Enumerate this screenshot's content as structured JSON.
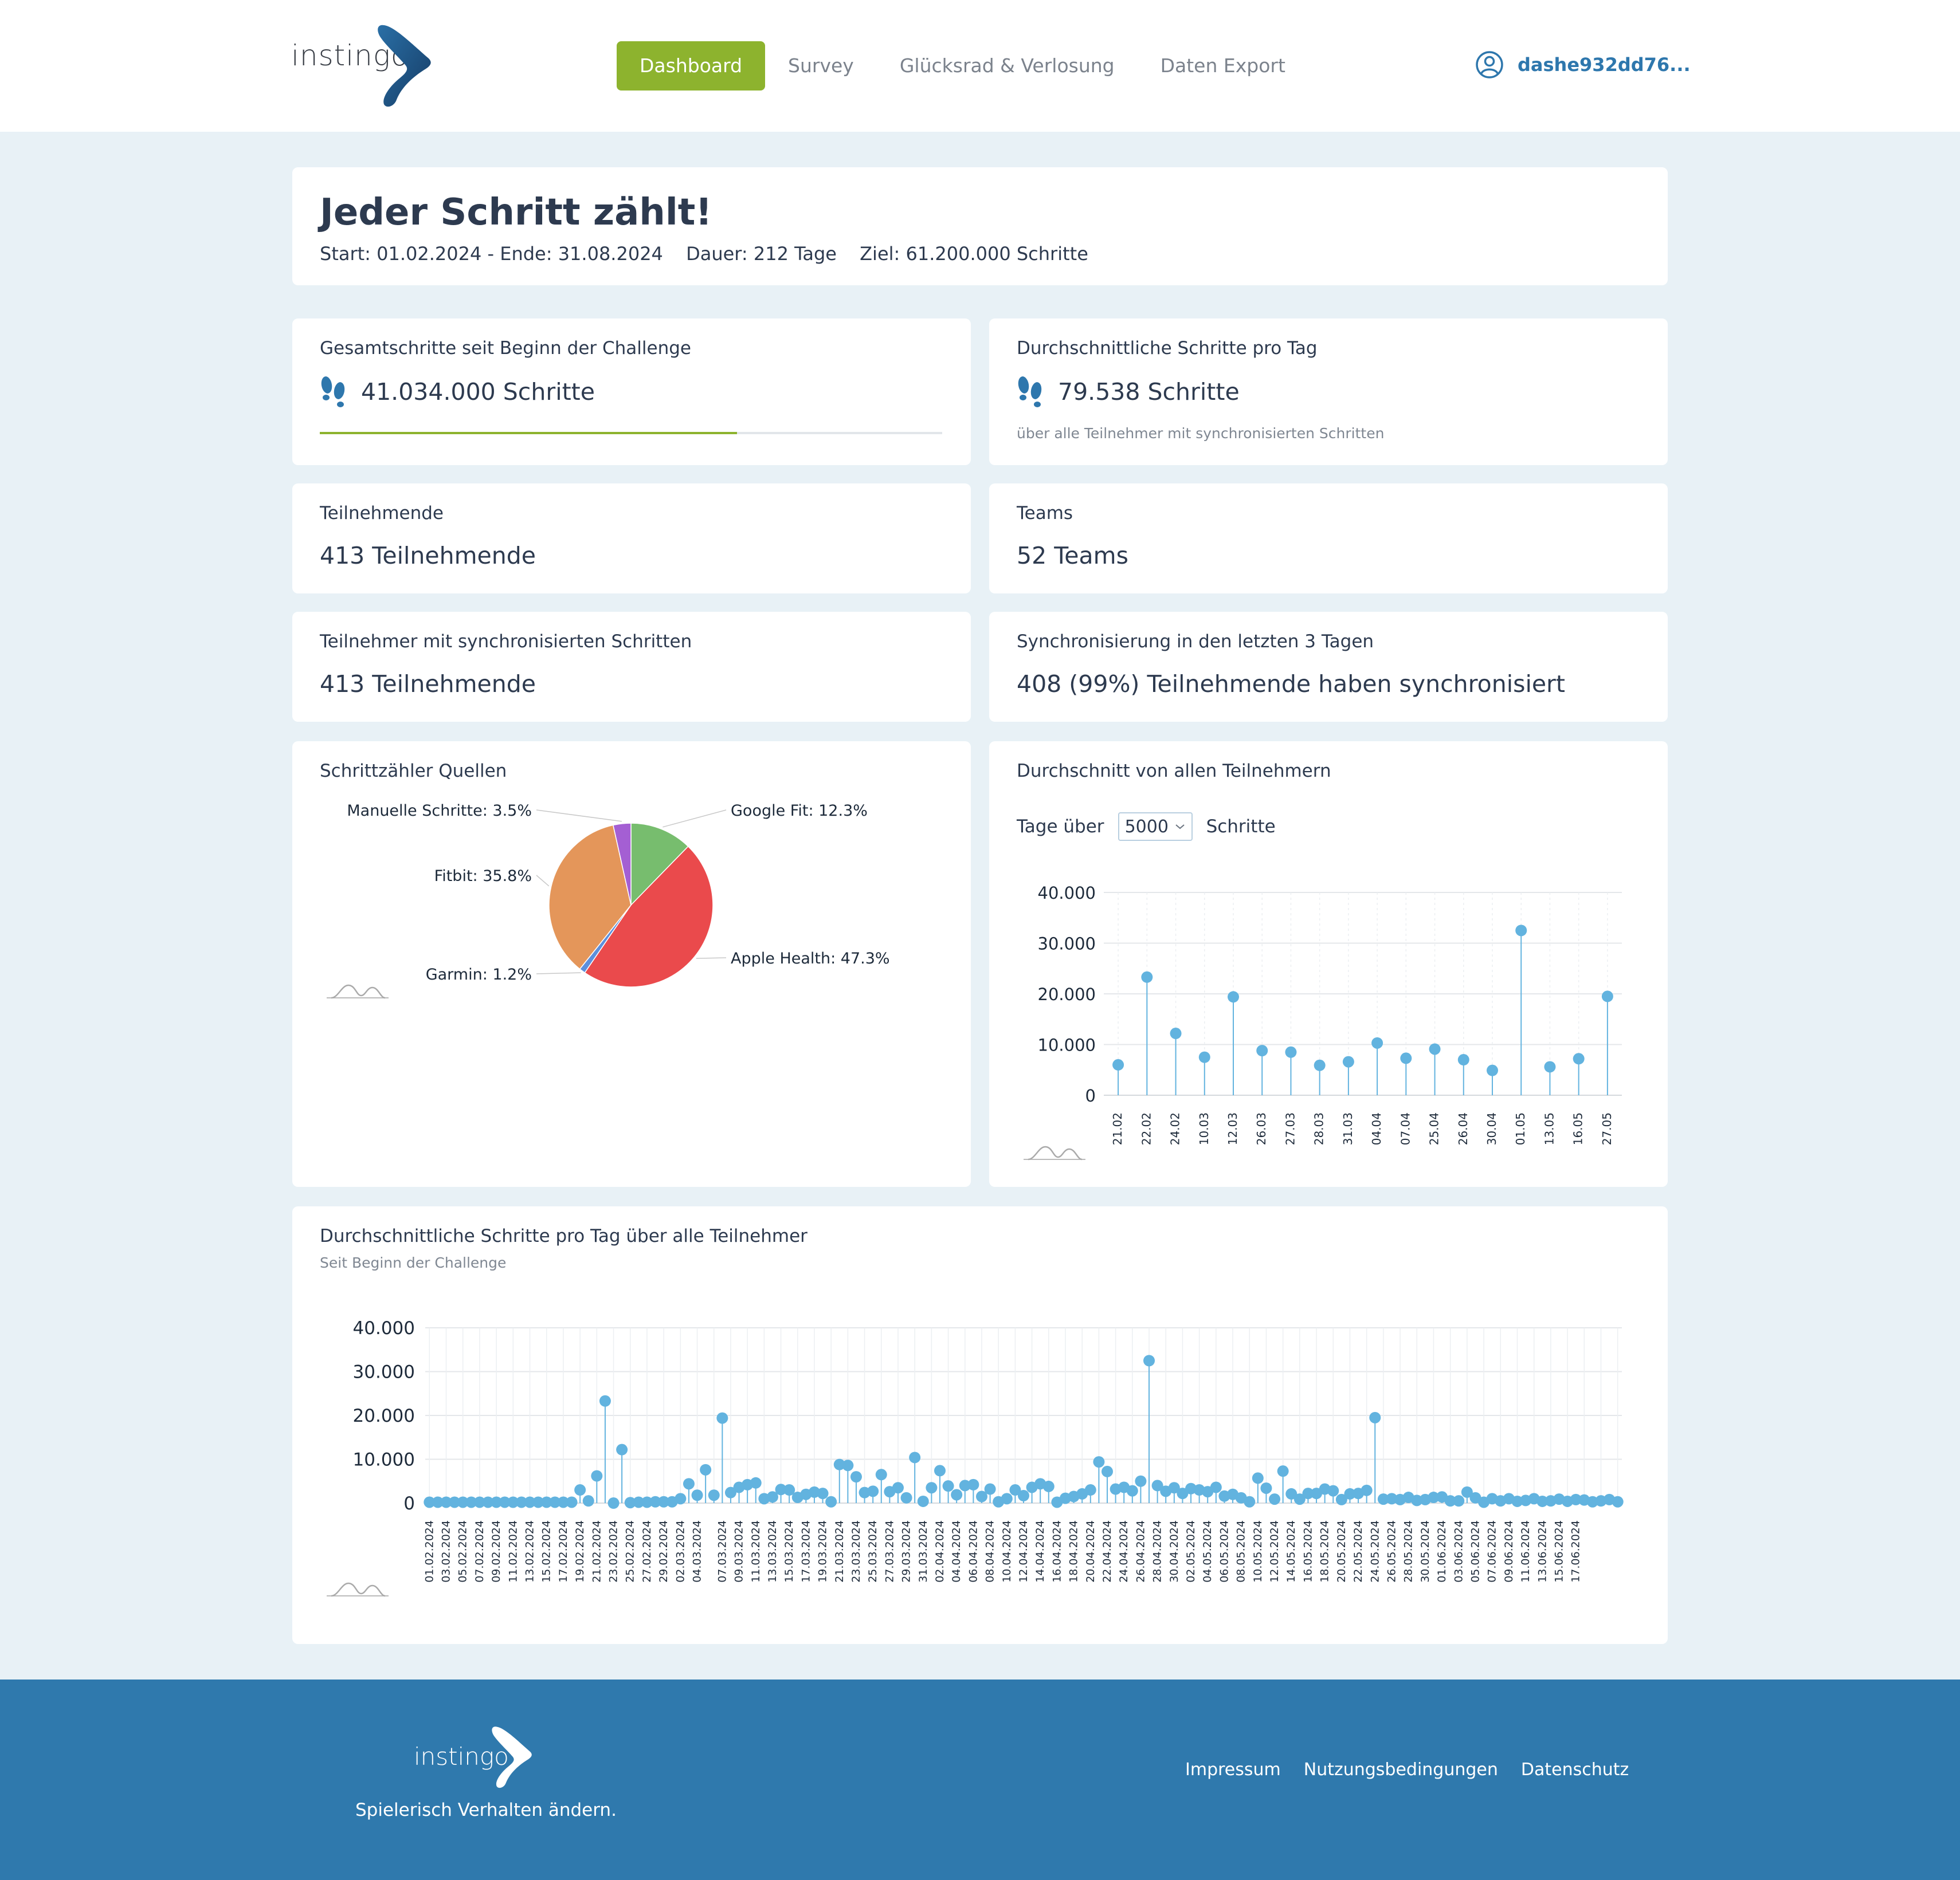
{
  "header": {
    "logo_text": "instingo",
    "nav": [
      {
        "label": "Dashboard",
        "active": true
      },
      {
        "label": "Survey",
        "active": false
      },
      {
        "label": "Glücksrad & Verlosung",
        "active": false
      },
      {
        "label": "Daten Export",
        "active": false
      }
    ],
    "user_name": "dashe932dd76...",
    "user_icon": "user-circle-icon"
  },
  "challenge": {
    "title": "Jeder Schritt zählt!",
    "start": "Start: 01.02.2024 - Ende: 31.08.2024",
    "duration": "Dauer: 212 Tage",
    "goal": "Ziel: 61.200.000 Schritte"
  },
  "stats": {
    "total_steps": {
      "label": "Gesamtschritte seit Beginn der Challenge",
      "value": "41.034.000 Schritte",
      "progress_fraction": 0.67,
      "icon": "footsteps-icon"
    },
    "avg_steps": {
      "label": "Durchschnittliche Schritte pro Tag",
      "value": "79.538 Schritte",
      "sub": "über alle Teilnehmer mit synchronisierten Schritten",
      "icon": "footsteps-icon"
    },
    "participants": {
      "label": "Teilnehmende",
      "value": "413 Teilnehmende"
    },
    "teams": {
      "label": "Teams",
      "value": "52 Teams"
    },
    "synced_participants": {
      "label": "Teilnehmer mit synchronisierten Schritten",
      "value": "413 Teilnehmende"
    },
    "sync_recent": {
      "label": "Synchronisierung in den letzten 3 Tagen",
      "value": "408 (99%) Teilnehmende haben synchronisiert"
    }
  },
  "pie_card": {
    "title": "Schrittzähler Quellen"
  },
  "days_card": {
    "title": "Durchschnitt von allen Teilnehmern",
    "filter_prefix": "Tage über",
    "filter_value": "5000",
    "filter_suffix": "Schritte"
  },
  "daily_card": {
    "title": "Durchschnittliche Schritte pro Tag über alle Teilnehmer",
    "subtitle": "Seit Beginn der Challenge"
  },
  "chart_data": [
    {
      "type": "pie",
      "title": "Schrittzähler Quellen",
      "slices": [
        {
          "label": "Google Fit: 12.3%",
          "name": "Google Fit",
          "value": 12.3,
          "color": "#77bd6e"
        },
        {
          "label": "Apple Health: 47.3%",
          "name": "Apple Health",
          "value": 47.3,
          "color": "#ea4a4c"
        },
        {
          "label": "Garmin: 1.2%",
          "name": "Garmin",
          "value": 1.2,
          "color": "#5c8fdc"
        },
        {
          "label": "Fitbit: 35.8%",
          "name": "Fitbit",
          "value": 35.8,
          "color": "#e4965a"
        },
        {
          "label": "Manuelle Schritte: 3.5%",
          "name": "Manuelle Schritte",
          "value": 3.5,
          "color": "#a45fd3"
        }
      ]
    },
    {
      "type": "scatter",
      "title": "Durchschnitt von allen Teilnehmern",
      "categories": [
        "21.02",
        "22.02",
        "24.02",
        "10.03",
        "12.03",
        "26.03",
        "27.03",
        "28.03",
        "31.03",
        "04.04",
        "07.04",
        "25.04",
        "26.04",
        "30.04",
        "01.05",
        "13.05",
        "16.05",
        "27.05"
      ],
      "values": [
        6000,
        23300,
        12200,
        7500,
        19400,
        8800,
        8500,
        5900,
        6600,
        10300,
        7300,
        9100,
        7000,
        4900,
        32500,
        5600,
        7200,
        19500
      ],
      "yticks": [
        "0",
        "10.000",
        "20.000",
        "30.000",
        "40.000"
      ],
      "ylim": [
        0,
        40000
      ],
      "grid": true,
      "color": "#62b3df"
    },
    {
      "type": "scatter",
      "title": "Durchschnittliche Schritte pro Tag über alle Teilnehmer",
      "x_start": "01.02.2024",
      "x_end": "17.06.2024",
      "x_tick_labels": [
        "01.02.2024",
        "03.02.2024",
        "05.02.2024",
        "07.02.2024",
        "09.02.2024",
        "11.02.2024",
        "13.02.2024",
        "15.02.2024",
        "17.02.2024",
        "19.02.2024",
        "21.02.2024",
        "23.02.2024",
        "25.02.2024",
        "27.02.2024",
        "29.02.2024",
        "02.03.2024",
        "04.03.2024",
        "07.03.2024",
        "09.03.2024",
        "11.03.2024",
        "13.03.2024",
        "15.03.2024",
        "17.03.2024",
        "19.03.2024",
        "21.03.2024",
        "23.03.2024",
        "25.03.2024",
        "27.03.2024",
        "29.03.2024",
        "31.03.2024",
        "02.04.2024",
        "04.04.2024",
        "06.04.2024",
        "08.04.2024",
        "10.04.2024",
        "12.04.2024",
        "14.04.2024",
        "16.04.2024",
        "18.04.2024",
        "20.04.2024",
        "22.04.2024",
        "24.04.2024",
        "26.04.2024",
        "28.04.2024",
        "30.04.2024",
        "02.05.2024",
        "04.05.2024",
        "06.05.2024",
        "08.05.2024",
        "10.05.2024",
        "12.05.2024",
        "14.05.2024",
        "16.05.2024",
        "18.05.2024",
        "20.05.2024",
        "22.05.2024",
        "24.05.2024",
        "26.05.2024",
        "28.05.2024",
        "30.05.2024",
        "01.06.2024",
        "03.06.2024",
        "05.06.2024",
        "07.06.2024",
        "09.06.2024",
        "11.06.2024",
        "13.06.2024",
        "15.06.2024",
        "17.06.2024"
      ],
      "values": [
        200,
        200,
        200,
        200,
        200,
        200,
        200,
        200,
        200,
        200,
        200,
        200,
        200,
        200,
        200,
        200,
        200,
        200,
        3000,
        500,
        6200,
        23300,
        0,
        12200,
        100,
        200,
        200,
        300,
        300,
        300,
        1000,
        4400,
        1800,
        7600,
        1800,
        19400,
        2400,
        3600,
        4200,
        4600,
        1000,
        1400,
        3100,
        3000,
        1300,
        2000,
        2500,
        2200,
        300,
        8800,
        8600,
        6000,
        2400,
        2700,
        6500,
        2600,
        3500,
        1200,
        10400,
        400,
        3500,
        7400,
        3900,
        1900,
        4000,
        4200,
        1500,
        3200,
        300,
        1000,
        3000,
        1700,
        3600,
        4400,
        3800,
        200,
        1100,
        1500,
        2100,
        3000,
        9400,
        7200,
        3200,
        3600,
        2800,
        5000,
        32500,
        4000,
        2700,
        3500,
        2200,
        3300,
        3000,
        2600,
        3600,
        1600,
        2000,
        1200,
        300,
        5700,
        3400,
        900,
        7300,
        2100,
        900,
        2200,
        2200,
        3200,
        2800,
        800,
        2100,
        2200,
        2900,
        19500,
        900,
        1000,
        800,
        1300,
        600,
        800,
        1300,
        1400,
        500,
        500,
        2500,
        1200,
        200,
        1000,
        500,
        1000,
        400,
        600,
        1000,
        400,
        500,
        900,
        400,
        800,
        700,
        300,
        500,
        800,
        300
      ],
      "yticks": [
        "0",
        "10.000",
        "20.000",
        "30.000",
        "40.000"
      ],
      "ylim": [
        0,
        40000
      ],
      "grid": true,
      "color": "#62b3df"
    }
  ],
  "footer": {
    "logo_text": "instingo",
    "slogan": "Spielerisch Verhalten ändern.",
    "links": [
      "Impressum",
      "Nutzungsbedingungen",
      "Datenschutz"
    ]
  }
}
